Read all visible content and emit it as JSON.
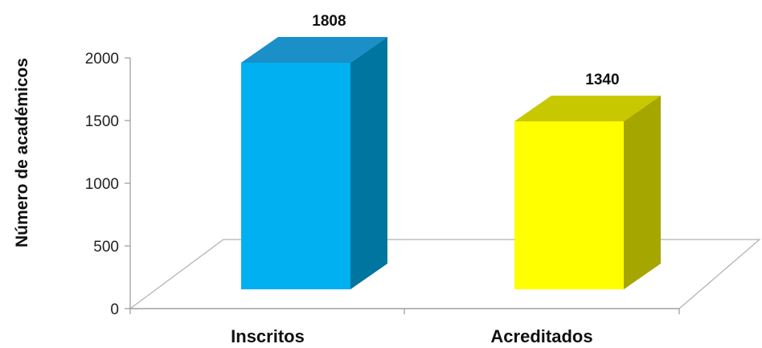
{
  "chart_data": {
    "type": "bar",
    "style": "3d-column",
    "categories": [
      "Inscritos",
      "Acreditados"
    ],
    "values": [
      1808,
      1340
    ],
    "data_labels": [
      "1808",
      "1340"
    ],
    "title": "",
    "xlabel": "",
    "ylabel": "Número de académicos",
    "ylim": [
      0,
      2000
    ],
    "yticks": [
      "0",
      "500",
      "1000",
      "1500",
      "2000"
    ],
    "grid": false,
    "legend": "none",
    "colors": {
      "bars": [
        {
          "front": "#00B0F0",
          "side": "#0075A0",
          "top": "#1A8FC8"
        },
        {
          "front": "#FFFF00",
          "side": "#A6A600",
          "top": "#C8C800"
        }
      ],
      "axis": "#9a9a9a",
      "floor_line": "#b0b0b0"
    }
  }
}
